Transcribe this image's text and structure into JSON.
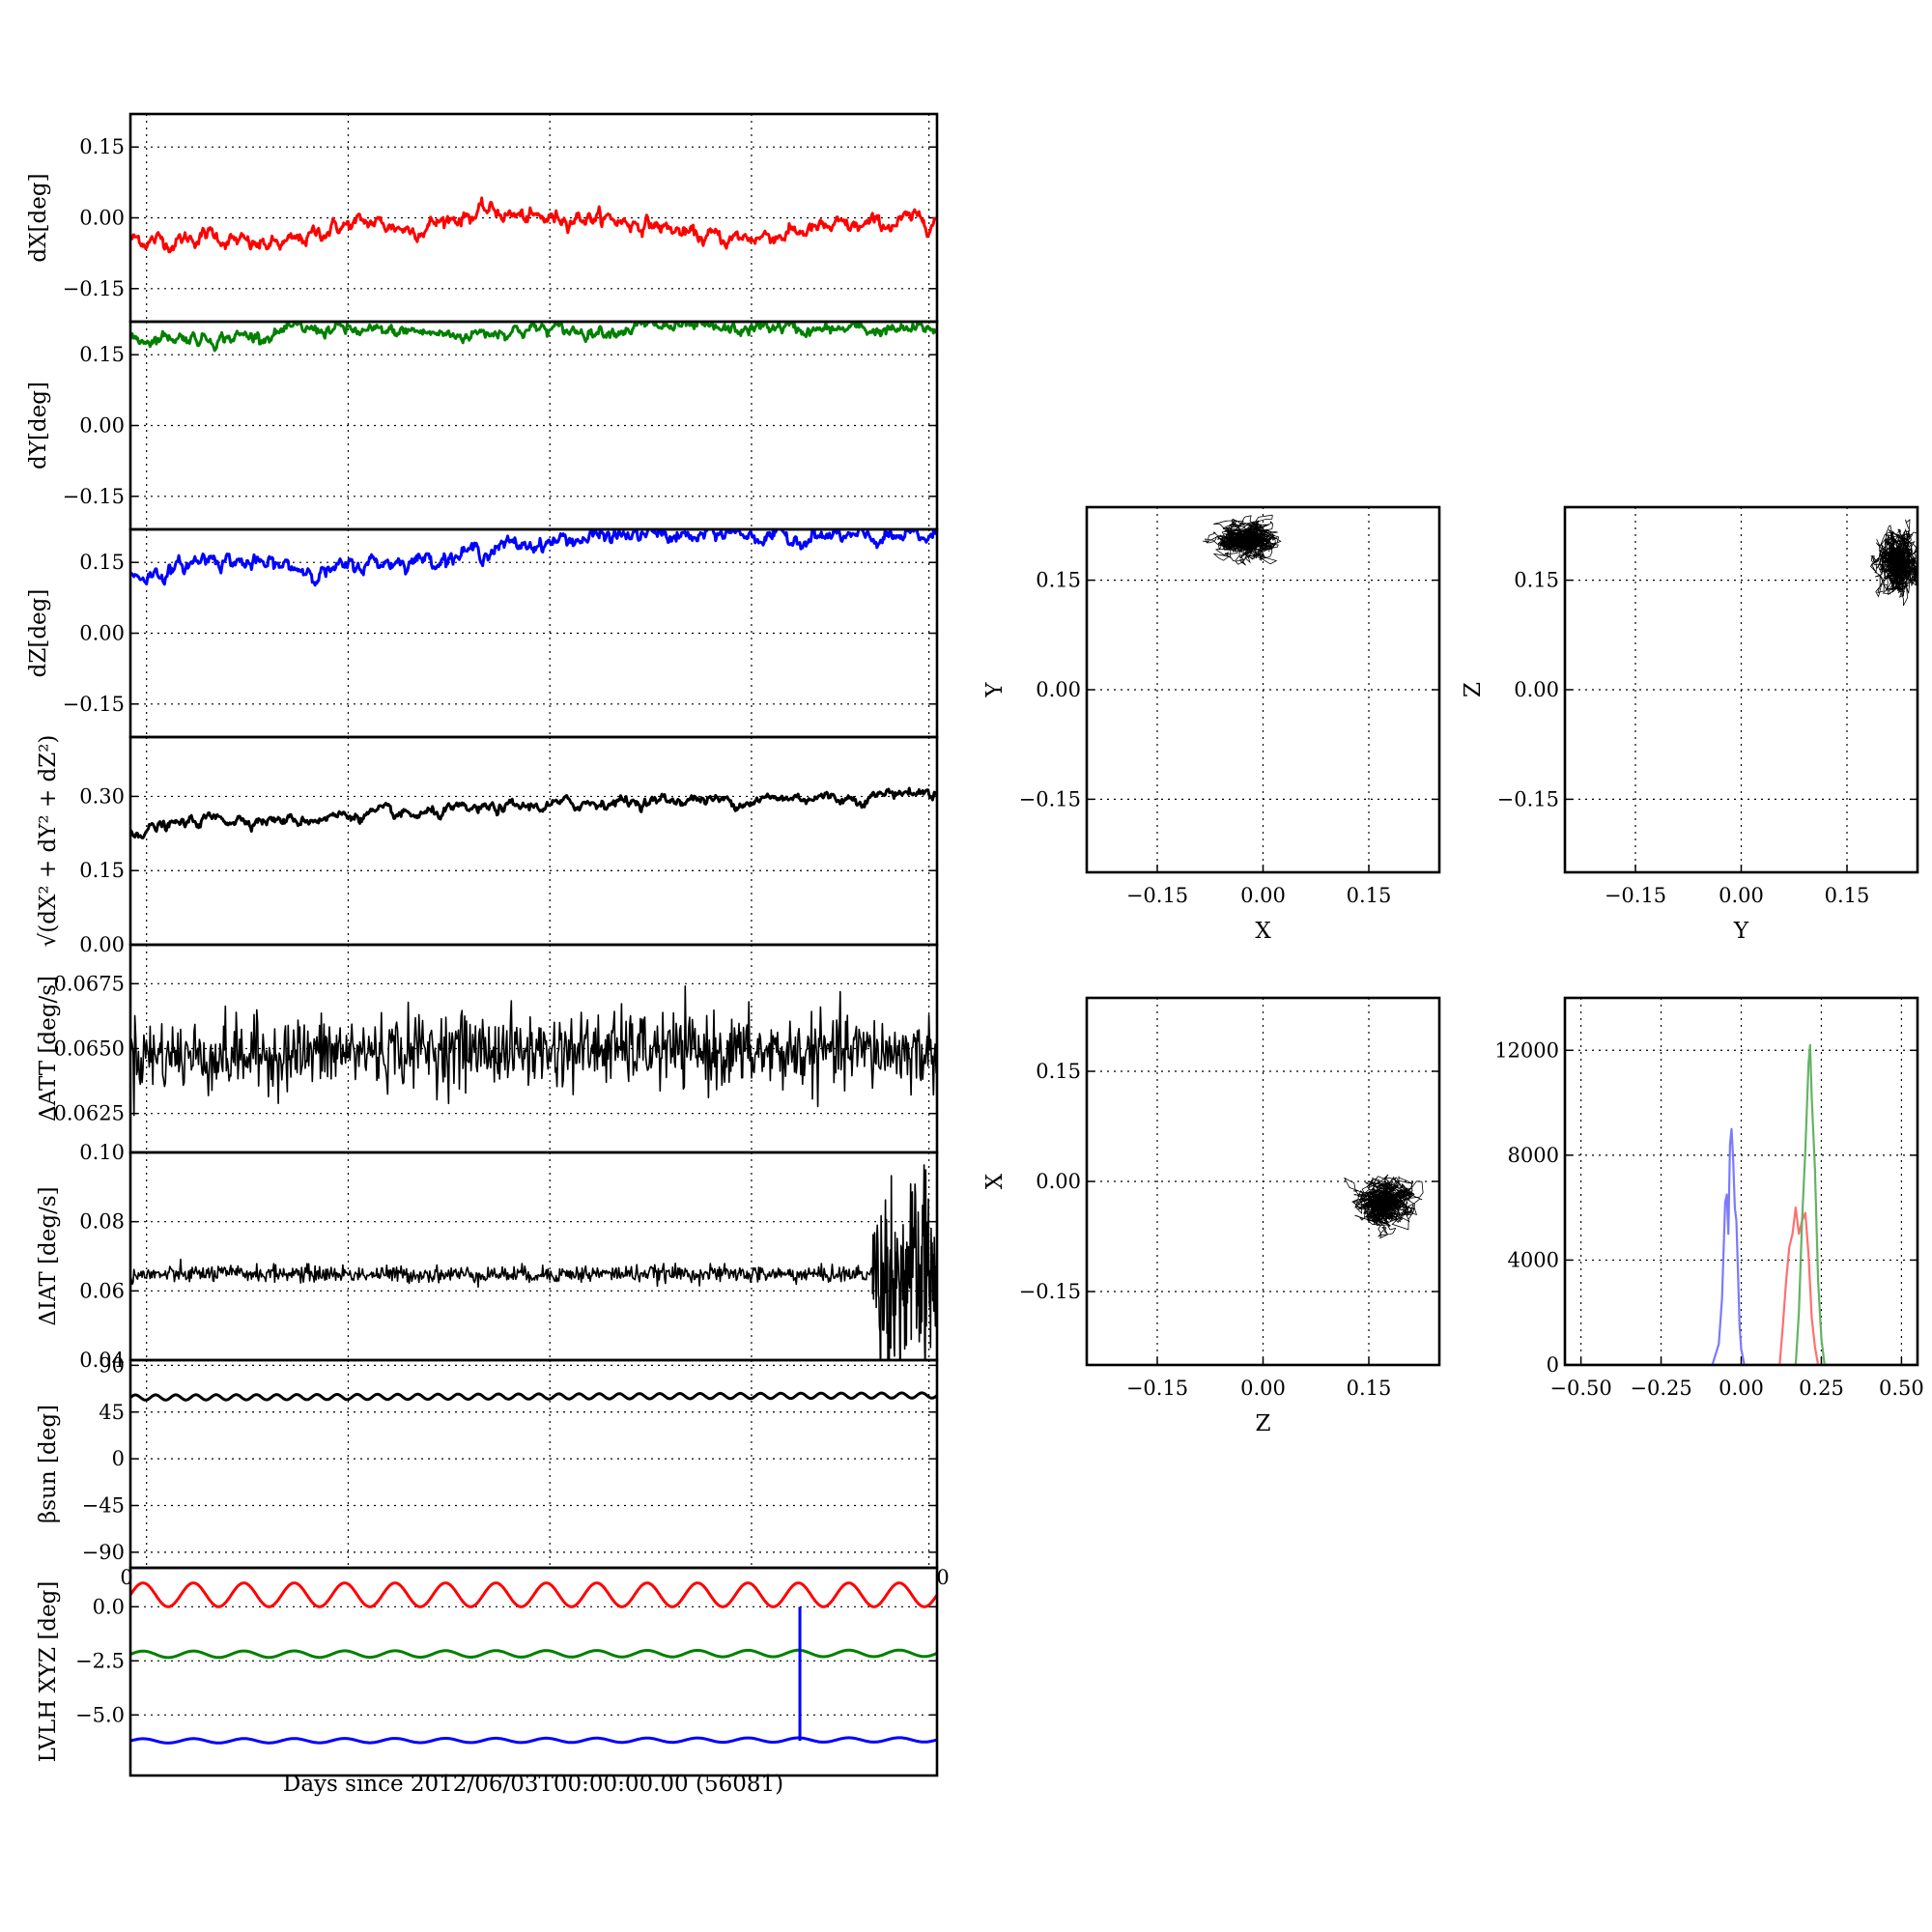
{
  "figure": {
    "xlabel": "Days since 2012/06/03T00:00:00.00 (56081)"
  },
  "colors": {
    "red": "#ff0000",
    "green": "#008000",
    "blue": "#0000ff",
    "black": "#000000",
    "hist_red": "#ff6f6f",
    "hist_green": "#63b363",
    "hist_blue": "#7a7aff"
  },
  "chart_data": [
    {
      "id": "dx",
      "type": "line",
      "ylabel": "dX[deg]",
      "ylim": [
        -0.22,
        0.22
      ],
      "yticks": [
        -0.15,
        0.0,
        0.15
      ],
      "ytick_labels": [
        "−0.15",
        "0.00",
        "0.15"
      ],
      "xlim": [
        0,
        1
      ],
      "grid": true,
      "series": [
        {
          "color": "#ff0000",
          "noise": 0.006,
          "x": [
            0,
            0.05,
            0.1,
            0.15,
            0.2,
            0.25,
            0.3,
            0.35,
            0.4,
            0.45,
            0.5,
            0.55,
            0.6,
            0.65,
            0.7,
            0.75,
            0.8,
            0.85,
            0.9,
            0.95,
            1.0
          ],
          "y": [
            -0.045,
            -0.05,
            -0.035,
            -0.06,
            -0.055,
            -0.02,
            -0.01,
            -0.025,
            0.0,
            0.015,
            -0.005,
            0.005,
            -0.005,
            -0.015,
            -0.04,
            -0.045,
            -0.035,
            -0.025,
            -0.02,
            -0.01,
            0.0
          ]
        }
      ]
    },
    {
      "id": "dy",
      "type": "line",
      "ylabel": "dY[deg]",
      "ylim": [
        -0.22,
        0.22
      ],
      "yticks": [
        -0.15,
        0.0,
        0.15
      ],
      "ytick_labels": [
        "−0.15",
        "0.00",
        "0.15"
      ],
      "xlim": [
        0,
        1
      ],
      "grid": true,
      "series": [
        {
          "color": "#008000",
          "noise": 0.005,
          "x": [
            0,
            0.05,
            0.1,
            0.15,
            0.2,
            0.25,
            0.3,
            0.35,
            0.4,
            0.45,
            0.5,
            0.55,
            0.6,
            0.65,
            0.7,
            0.75,
            0.8,
            0.85,
            0.9,
            0.95,
            1.0
          ],
          "y": [
            0.18,
            0.19,
            0.185,
            0.19,
            0.2,
            0.205,
            0.195,
            0.2,
            0.19,
            0.2,
            0.205,
            0.2,
            0.205,
            0.21,
            0.205,
            0.2,
            0.21,
            0.2,
            0.205,
            0.2,
            0.205
          ]
        }
      ]
    },
    {
      "id": "dz",
      "type": "line",
      "ylabel": "dZ[deg]",
      "ylim": [
        -0.22,
        0.22
      ],
      "yticks": [
        -0.15,
        0.0,
        0.15
      ],
      "ytick_labels": [
        "−0.15",
        "0.00",
        "0.15"
      ],
      "xlim": [
        0,
        1
      ],
      "grid": true,
      "series": [
        {
          "color": "#0000ff",
          "noise": 0.006,
          "x": [
            0,
            0.05,
            0.1,
            0.15,
            0.2,
            0.25,
            0.3,
            0.35,
            0.4,
            0.45,
            0.5,
            0.55,
            0.6,
            0.65,
            0.7,
            0.75,
            0.8,
            0.85,
            0.9,
            0.95,
            1.0
          ],
          "y": [
            0.12,
            0.13,
            0.165,
            0.145,
            0.14,
            0.13,
            0.15,
            0.155,
            0.165,
            0.18,
            0.19,
            0.2,
            0.205,
            0.21,
            0.2,
            0.215,
            0.2,
            0.205,
            0.2,
            0.2,
            0.205
          ]
        }
      ]
    },
    {
      "id": "mag",
      "type": "line",
      "ylabel": "√(dX² + dY² + dZ²)",
      "ylim": [
        0.0,
        0.42
      ],
      "yticks": [
        0.0,
        0.15,
        0.3
      ],
      "ytick_labels": [
        "0.00",
        "0.15",
        "0.30"
      ],
      "xlim": [
        0,
        1
      ],
      "grid": true,
      "series": [
        {
          "color": "#000000",
          "noise": 0.004,
          "x": [
            0,
            0.05,
            0.1,
            0.15,
            0.2,
            0.25,
            0.3,
            0.35,
            0.4,
            0.45,
            0.5,
            0.55,
            0.6,
            0.65,
            0.7,
            0.75,
            0.8,
            0.85,
            0.9,
            0.95,
            1.0
          ],
          "y": [
            0.23,
            0.24,
            0.255,
            0.255,
            0.25,
            0.26,
            0.265,
            0.26,
            0.27,
            0.275,
            0.28,
            0.285,
            0.29,
            0.29,
            0.295,
            0.29,
            0.295,
            0.3,
            0.295,
            0.31,
            0.305
          ]
        }
      ]
    },
    {
      "id": "datt",
      "type": "line",
      "ylabel": "ΔATT [deg/s]",
      "ylim": [
        0.061,
        0.069
      ],
      "yticks": [
        0.0625,
        0.065,
        0.0675
      ],
      "ytick_labels": [
        "0.0625",
        "0.0650",
        "0.0675"
      ],
      "xlim": [
        0,
        1
      ],
      "grid": true,
      "series": [
        {
          "color": "#000000",
          "noise": 0.0007,
          "x": [
            0,
            0.1,
            0.2,
            0.3,
            0.4,
            0.5,
            0.6,
            0.7,
            0.8,
            0.9,
            1.0
          ],
          "y": [
            0.0648,
            0.0647,
            0.0648,
            0.0649,
            0.065,
            0.0649,
            0.065,
            0.0649,
            0.0648,
            0.0649,
            0.0648
          ]
        }
      ]
    },
    {
      "id": "diat",
      "type": "line",
      "ylabel": "ΔIAT [deg/s]",
      "ylim": [
        0.04,
        0.1
      ],
      "yticks": [
        0.04,
        0.06,
        0.08,
        0.1
      ],
      "ytick_labels": [
        "0.04",
        "0.06",
        "0.08",
        "0.10"
      ],
      "xlim": [
        0,
        1
      ],
      "grid": true,
      "series": [
        {
          "color": "#000000",
          "noise": 0.0012,
          "x": [
            0,
            0.1,
            0.2,
            0.3,
            0.4,
            0.5,
            0.6,
            0.7,
            0.8,
            0.9,
            0.92
          ],
          "y": [
            0.0645,
            0.065,
            0.065,
            0.0648,
            0.0648,
            0.0648,
            0.065,
            0.065,
            0.0648,
            0.0648,
            0.065
          ]
        },
        {
          "color": "#000000",
          "noise": 0.014,
          "x": [
            0.92,
            0.96,
            1.0
          ],
          "y": [
            0.064,
            0.064,
            0.064
          ]
        }
      ]
    },
    {
      "id": "bsun",
      "type": "line",
      "ylabel": "βsun [deg]",
      "ylim": [
        -105,
        95
      ],
      "yticks": [
        -90,
        -45,
        0,
        45,
        90
      ],
      "ytick_labels": [
        "−90",
        "−45",
        "0",
        "45",
        "90"
      ],
      "xlim": [
        0,
        1
      ],
      "grid": true,
      "series": [
        {
          "color": "#000000",
          "noise": 0.0,
          "wave": {
            "amp": 2.5,
            "cycles": 40
          },
          "x": [
            0,
            1
          ],
          "y": [
            59,
            61
          ]
        }
      ]
    },
    {
      "id": "lvlh",
      "type": "line",
      "ylabel": "LVLH XYZ [deg]",
      "ylim": [
        -7.8,
        1.8
      ],
      "yticks": [
        -5.0,
        -2.5,
        0.0
      ],
      "ytick_labels": [
        "−5.0",
        "−2.5",
        "0.0"
      ],
      "xticks": [
        0,
        1
      ],
      "xtick_labels": [
        "0",
        "0"
      ],
      "xlim": [
        0,
        1
      ],
      "grid": true,
      "series": [
        {
          "color": "#ff0000",
          "noise": 0.0,
          "wave": {
            "amp": 0.55,
            "cycles": 16
          },
          "x": [
            0,
            1
          ],
          "y": [
            0.55,
            0.55
          ]
        },
        {
          "color": "#008000",
          "noise": 0.0,
          "wave": {
            "amp": 0.15,
            "cycles": 16
          },
          "x": [
            0,
            1
          ],
          "y": [
            -2.2,
            -2.15
          ]
        },
        {
          "color": "#0000ff",
          "noise": 0.0,
          "wave": {
            "amp": 0.1,
            "cycles": 16
          },
          "x": [
            0,
            1
          ],
          "y": [
            -6.2,
            -6.15
          ]
        }
      ],
      "spike": {
        "color": "#0000ff",
        "x": 0.83,
        "y_from": 0.0,
        "y_to": -6.2
      }
    },
    {
      "id": "xy",
      "type": "scatter",
      "xlabel": "X",
      "ylabel": "Y",
      "xlim": [
        -0.25,
        0.25
      ],
      "ylim": [
        -0.25,
        0.25
      ],
      "xticks": [
        -0.15,
        0.0,
        0.15
      ],
      "xtick_labels": [
        "−0.15",
        "0.00",
        "0.15"
      ],
      "yticks": [
        -0.15,
        0.0,
        0.15
      ],
      "ytick_labels": [
        "−0.15",
        "0.00",
        "0.15"
      ],
      "grid": true,
      "cloud": {
        "center": [
          -0.025,
          0.205
        ],
        "spread": [
          0.028,
          0.018
        ],
        "color": "#000000"
      }
    },
    {
      "id": "yz",
      "type": "scatter",
      "xlabel": "Y",
      "ylabel": "Z",
      "xlim": [
        -0.25,
        0.25
      ],
      "ylim": [
        -0.25,
        0.25
      ],
      "xticks": [
        -0.15,
        0.0,
        0.15
      ],
      "xtick_labels": [
        "−0.15",
        "0.00",
        "0.15"
      ],
      "yticks": [
        -0.15,
        0.0,
        0.15
      ],
      "ytick_labels": [
        "−0.15",
        "0.00",
        "0.15"
      ],
      "grid": true,
      "cloud": {
        "center": [
          0.222,
          0.175
        ],
        "spread": [
          0.02,
          0.03
        ],
        "color": "#000000"
      }
    },
    {
      "id": "zx",
      "type": "scatter",
      "xlabel": "Z",
      "ylabel": "X",
      "xlim": [
        -0.25,
        0.25
      ],
      "ylim": [
        -0.25,
        0.25
      ],
      "xticks": [
        -0.15,
        0.0,
        0.15
      ],
      "xtick_labels": [
        "−0.15",
        "0.00",
        "0.15"
      ],
      "yticks": [
        -0.15,
        0.0,
        0.15
      ],
      "ytick_labels": [
        "−0.15",
        "0.00",
        "0.15"
      ],
      "grid": true,
      "cloud": {
        "center": [
          0.17,
          -0.03
        ],
        "spread": [
          0.03,
          0.022
        ],
        "color": "#000000"
      }
    },
    {
      "id": "hist",
      "type": "line",
      "xlim": [
        -0.55,
        0.55
      ],
      "ylim": [
        0,
        14000
      ],
      "xticks": [
        -0.5,
        -0.25,
        0.0,
        0.25,
        0.5
      ],
      "xtick_labels": [
        "−0.50",
        "−0.25",
        "0.00",
        "0.25",
        "0.50"
      ],
      "yticks": [
        0,
        4000,
        8000,
        12000
      ],
      "ytick_labels": [
        "0",
        "4000",
        "8000",
        "12000"
      ],
      "grid": true,
      "series": [
        {
          "color": "#7a7aff",
          "x": [
            -0.55,
            -0.09,
            -0.07,
            -0.06,
            -0.05,
            -0.045,
            -0.04,
            -0.035,
            -0.03,
            -0.025,
            -0.02,
            -0.015,
            -0.01,
            -0.005,
            0.0,
            0.01,
            0.55
          ],
          "y": [
            0,
            0,
            800,
            2500,
            6200,
            6500,
            5000,
            8400,
            9000,
            7800,
            6000,
            5500,
            3500,
            1500,
            600,
            0,
            0
          ]
        },
        {
          "color": "#ff6f6f",
          "x": [
            -0.55,
            0.12,
            0.13,
            0.14,
            0.15,
            0.16,
            0.17,
            0.18,
            0.19,
            0.2,
            0.21,
            0.22,
            0.23,
            0.24,
            0.55
          ],
          "y": [
            0,
            0,
            1500,
            3200,
            4500,
            5000,
            6000,
            5000,
            5500,
            5800,
            4200,
            1800,
            700,
            0,
            0
          ]
        },
        {
          "color": "#63b363",
          "x": [
            -0.55,
            0.17,
            0.18,
            0.19,
            0.2,
            0.205,
            0.21,
            0.215,
            0.22,
            0.23,
            0.24,
            0.25,
            0.26,
            0.55
          ],
          "y": [
            0,
            0,
            2000,
            5500,
            8200,
            9800,
            11500,
            12200,
            10200,
            7500,
            3200,
            1000,
            0,
            0
          ]
        }
      ]
    }
  ]
}
